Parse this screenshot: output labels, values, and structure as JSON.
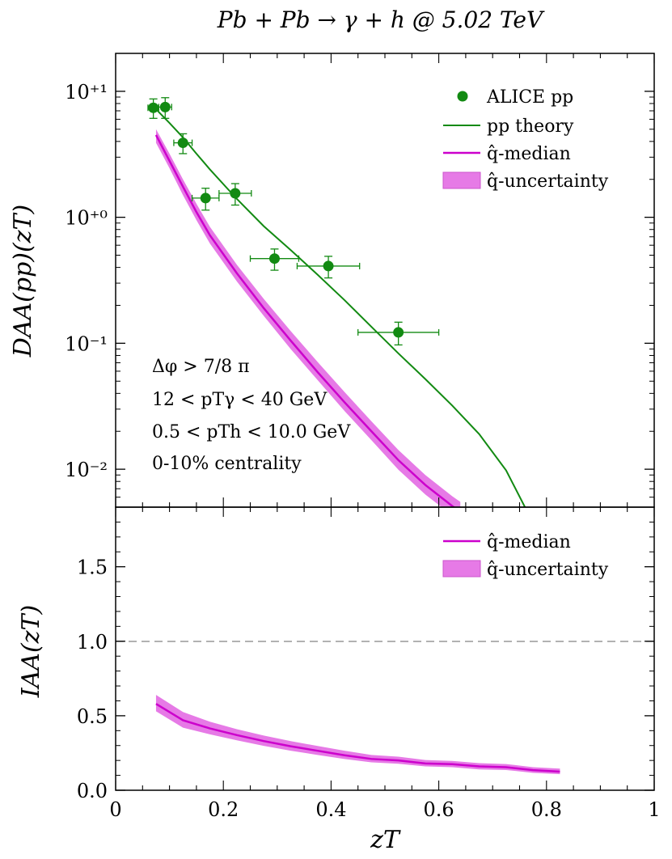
{
  "chart_data": [
    {
      "type": "line",
      "title": "Pb + Pb → γ + h @ 5.02 TeV",
      "xlabel": "zT",
      "ylabel": "DAA(pp)(zT)",
      "yscale": "log",
      "xlim": [
        0,
        1
      ],
      "ylim": [
        0.005,
        20
      ],
      "yticks": [
        0.01,
        0.1,
        1,
        10
      ],
      "ytick_labels": [
        "10⁻²",
        "10⁻¹",
        "10⁺⁰",
        "10⁺¹"
      ],
      "legend_placement": "top-right",
      "legend": [
        "ALICE pp",
        "pp theory",
        "q̂-median",
        "q̂-uncertainty"
      ],
      "annotations": [
        "Δφ > 7/8 π",
        "12 < pTγ < 40 GeV",
        "0.5 < pTh < 10.0 GeV",
        "0-10% centrality"
      ],
      "colors": {
        "data": "#128a12",
        "theory": "#128a12",
        "median": "#cc00cc",
        "band": "#e67ae6"
      },
      "points": {
        "name": "ALICE pp",
        "x": [
          0.07,
          0.092,
          0.125,
          0.167,
          0.222,
          0.295,
          0.395,
          0.525
        ],
        "y": [
          7.4,
          7.5,
          3.9,
          1.42,
          1.55,
          0.47,
          0.41,
          0.122
        ],
        "xerr": [
          [
            0.01,
            0.01
          ],
          [
            0.012,
            0.012
          ],
          [
            0.017,
            0.017
          ],
          [
            0.025,
            0.025
          ],
          [
            0.03,
            0.03
          ],
          [
            0.045,
            0.045
          ],
          [
            0.058,
            0.058
          ],
          [
            0.075,
            0.075
          ]
        ],
        "yerr": [
          [
            1.3,
            1.3
          ],
          [
            1.4,
            1.4
          ],
          [
            0.7,
            0.7
          ],
          [
            0.28,
            0.28
          ],
          [
            0.3,
            0.3
          ],
          [
            0.09,
            0.09
          ],
          [
            0.08,
            0.08
          ],
          [
            0.025,
            0.025
          ]
        ]
      },
      "theory": {
        "name": "pp theory",
        "x": [
          0.075,
          0.1,
          0.125,
          0.15,
          0.175,
          0.225,
          0.275,
          0.325,
          0.375,
          0.425,
          0.475,
          0.525,
          0.575,
          0.625,
          0.675,
          0.725,
          0.76
        ],
        "y": [
          7.2,
          5.6,
          4.3,
          3.2,
          2.4,
          1.4,
          0.85,
          0.55,
          0.35,
          0.22,
          0.135,
          0.083,
          0.052,
          0.032,
          0.019,
          0.0098,
          0.005
        ]
      },
      "median": {
        "name": "q̂-median",
        "x": [
          0.075,
          0.1,
          0.125,
          0.15,
          0.175,
          0.225,
          0.275,
          0.325,
          0.375,
          0.425,
          0.475,
          0.525,
          0.575,
          0.625,
          0.64
        ],
        "y": [
          4.5,
          2.8,
          1.75,
          1.1,
          0.72,
          0.36,
          0.19,
          0.105,
          0.059,
          0.034,
          0.02,
          0.0118,
          0.0075,
          0.0051,
          0.0046
        ],
        "band_lo": [
          3.9,
          2.45,
          1.5,
          0.95,
          0.62,
          0.31,
          0.165,
          0.09,
          0.051,
          0.029,
          0.017,
          0.0099,
          0.0063,
          0.0043,
          0.004
        ],
        "band_hi": [
          5.0,
          3.2,
          2.0,
          1.28,
          0.84,
          0.42,
          0.225,
          0.125,
          0.071,
          0.041,
          0.024,
          0.0142,
          0.009,
          0.0061,
          0.0055
        ]
      }
    },
    {
      "type": "line",
      "xlabel": "zT",
      "ylabel": "IAA(zT)",
      "xlim": [
        0,
        1
      ],
      "ylim": [
        0,
        1.9
      ],
      "xticks": [
        0,
        0.2,
        0.4,
        0.6,
        0.8,
        1
      ],
      "xtick_labels": [
        "0",
        "0.2",
        "0.4",
        "0.6",
        "0.8",
        "1"
      ],
      "yticks": [
        0,
        0.5,
        1,
        1.5
      ],
      "ytick_labels": [
        "0.0",
        "0.5",
        "1.0",
        "1.5"
      ],
      "reference_line": 1.0,
      "legend_placement": "top-right",
      "legend": [
        "q̂-median",
        "q̂-uncertainty"
      ],
      "median": {
        "x": [
          0.075,
          0.125,
          0.175,
          0.225,
          0.275,
          0.325,
          0.375,
          0.425,
          0.475,
          0.525,
          0.575,
          0.625,
          0.675,
          0.725,
          0.775,
          0.825
        ],
        "y": [
          0.58,
          0.47,
          0.415,
          0.37,
          0.33,
          0.295,
          0.265,
          0.235,
          0.21,
          0.2,
          0.18,
          0.175,
          0.16,
          0.155,
          0.135,
          0.125
        ],
        "band_lo": [
          0.53,
          0.42,
          0.375,
          0.335,
          0.298,
          0.265,
          0.237,
          0.21,
          0.187,
          0.178,
          0.16,
          0.155,
          0.14,
          0.136,
          0.117,
          0.108
        ],
        "band_hi": [
          0.64,
          0.525,
          0.46,
          0.41,
          0.367,
          0.33,
          0.297,
          0.265,
          0.237,
          0.225,
          0.203,
          0.197,
          0.182,
          0.176,
          0.155,
          0.145
        ]
      }
    }
  ]
}
